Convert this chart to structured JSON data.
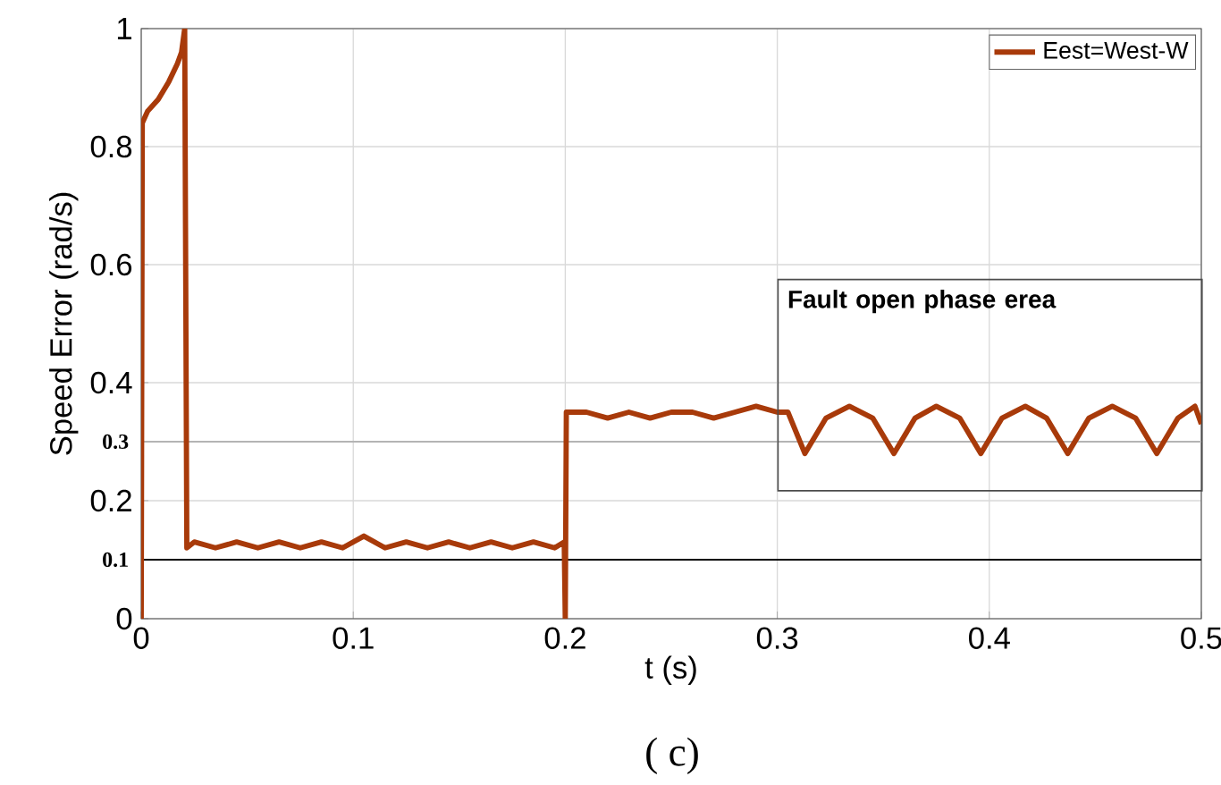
{
  "chart_data": {
    "type": "line",
    "xlabel": "t (s)",
    "ylabel": "Speed Error (rad/s)",
    "xlim": [
      0,
      0.5
    ],
    "ylim": [
      0,
      1
    ],
    "xticks": [
      0,
      0.1,
      0.2,
      0.3,
      0.4,
      0.5
    ],
    "yticks": [
      0,
      0.2,
      0.4,
      0.6,
      0.8,
      1
    ],
    "grid": true,
    "legend": "top right",
    "line_style": "solid",
    "marker": "none",
    "x": [
      0,
      0.0005,
      0.003,
      0.008,
      0.013,
      0.017,
      0.019,
      0.0205,
      0.0215,
      0.025,
      0.035,
      0.045,
      0.055,
      0.065,
      0.075,
      0.085,
      0.095,
      0.105,
      0.115,
      0.125,
      0.135,
      0.145,
      0.155,
      0.165,
      0.175,
      0.185,
      0.195,
      0.1995,
      0.2,
      0.2005,
      0.21,
      0.22,
      0.23,
      0.24,
      0.25,
      0.26,
      0.27,
      0.28,
      0.29,
      0.3,
      0.305,
      0.313,
      0.323,
      0.334,
      0.345,
      0.355,
      0.365,
      0.375,
      0.386,
      0.396,
      0.406,
      0.417,
      0.427,
      0.437,
      0.447,
      0.458,
      0.469,
      0.479,
      0.489,
      0.497,
      0.5
    ],
    "series": [
      {
        "name": "Eest=West-W",
        "color": "#a83a0a",
        "values": [
          0,
          0.84,
          0.86,
          0.88,
          0.91,
          0.94,
          0.96,
          1.0,
          0.12,
          0.13,
          0.12,
          0.13,
          0.12,
          0.13,
          0.12,
          0.13,
          0.12,
          0.14,
          0.12,
          0.13,
          0.12,
          0.13,
          0.12,
          0.13,
          0.12,
          0.13,
          0.12,
          0.13,
          0,
          0.35,
          0.35,
          0.34,
          0.35,
          0.34,
          0.35,
          0.35,
          0.34,
          0.35,
          0.36,
          0.35,
          0.35,
          0.28,
          0.34,
          0.36,
          0.34,
          0.28,
          0.34,
          0.36,
          0.34,
          0.28,
          0.34,
          0.36,
          0.34,
          0.28,
          0.34,
          0.36,
          0.34,
          0.28,
          0.34,
          0.36,
          0.33
        ]
      }
    ],
    "ref_lines": [
      {
        "axis": "y",
        "value": 0.1,
        "label": "0.1",
        "color": "#000000"
      },
      {
        "axis": "y",
        "value": 0.3,
        "label": "0.3",
        "color": "#b4b4b4"
      }
    ],
    "annotations": [
      "Fault open phase erea",
      "( c)"
    ]
  }
}
